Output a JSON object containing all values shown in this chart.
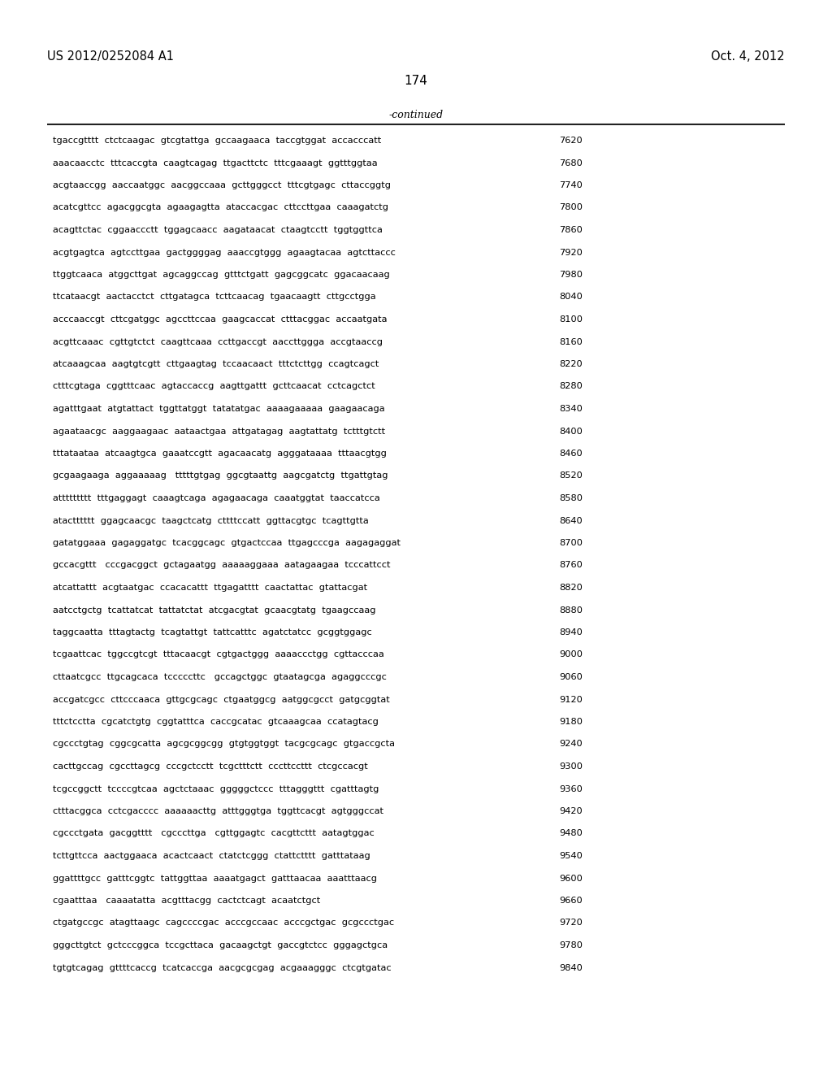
{
  "header_left": "US 2012/0252084 A1",
  "header_right": "Oct. 4, 2012",
  "page_number": "174",
  "continued_label": "-continued",
  "background_color": "#ffffff",
  "text_color": "#000000",
  "font_size_header": 10.5,
  "font_size_page": 11,
  "font_size_seq": 8.2,
  "sequence_lines": [
    {
      "seq": "tgaccgtttt  ctctcaagac  gtcgtattga  gccaagaaca  taccgtggat  accacccatt",
      "num": "7620"
    },
    {
      "seq": "aaacaacctc  tttcaccgta  caagtcagag  ttgacttctc  tttcgaaagt  ggtttggtaa",
      "num": "7680"
    },
    {
      "seq": "acgtaaccgg  aaccaatggc  aacggccaaa  gcttgggcct  tttcgtgagc  cttaccggtg",
      "num": "7740"
    },
    {
      "seq": "acatcgttcc  agacggcgta  agaagagtta  ataccacgac  cttccttgaa  caaagatctg",
      "num": "7800"
    },
    {
      "seq": "acagttctac  cggaaccctt  tggagcaacc  aagataacat  ctaagtcctt  tggtggttca",
      "num": "7860"
    },
    {
      "seq": "acgtgagtca  agtccttgaa  gactggggag  aaaccgtggg  agaagtacaa  agtcttaccc",
      "num": "7920"
    },
    {
      "seq": "ttggtcaaca  atggcttgat  agcaggccag  gtttctgatt  gagcggcatc  ggacaacaag",
      "num": "7980"
    },
    {
      "seq": "ttcataacgt  aactacctct  cttgatagca  tcttcaacag  tgaacaagtt  cttgcctgga",
      "num": "8040"
    },
    {
      "seq": "acccaaccgt  cttcgatggc  agccttccaa  gaagcaccat  ctttacggac  accaatgata",
      "num": "8100"
    },
    {
      "seq": "acgttcaaac  cgttgtctct  caagttcaaa  ccttgaccgt  aaccttggga  accgtaaccg",
      "num": "8160"
    },
    {
      "seq": "atcaaagcaa  aagtgtcgtt  cttgaagtag  tccaacaact  tttctcttgg  ccagtcagct",
      "num": "8220"
    },
    {
      "seq": "ctttcgtaga  cggtttcaac  agtaccaccg  aagttgattt  gcttcaacat  cctcagctct",
      "num": "8280"
    },
    {
      "seq": "agatttgaat  atgtattact  tggttatggt  tatatatgac  aaaagaaaaa  gaagaacaga",
      "num": "8340"
    },
    {
      "seq": "agaataacgc  aaggaagaac  aataactgaa  attgatagag  aagtattatg  tctttgtctt",
      "num": "8400"
    },
    {
      "seq": "tttataataa  atcaagtgca  gaaatccgtt  agacaacatg  agggataaaa  tttaacgtgg",
      "num": "8460"
    },
    {
      "seq": "gcgaagaaga  aggaaaaag   tttttgtgag  ggcgtaattg  aagcgatctg  ttgattgtag",
      "num": "8520"
    },
    {
      "seq": "attttttttt  tttgaggagt  caaagtcaga  agagaacaga  caaatggtat  taaccatcca",
      "num": "8580"
    },
    {
      "seq": "atactttttt  ggagcaacgc  taagctcatg  cttttccatt  ggttacgtgc  tcagttgtta",
      "num": "8640"
    },
    {
      "seq": "gatatggaaa  gagaggatgc  tcacggcagc  gtgactccaa  ttgagcccga  aagagaggat",
      "num": "8700"
    },
    {
      "seq": "gccacgttt   cccgacggct  gctagaatgg  aaaaaggaaa  aatagaagaa  tcccattcct",
      "num": "8760"
    },
    {
      "seq": "atcattattt  acgtaatgac  ccacacattt  ttgagatttt  caactattac  gtattacgat",
      "num": "8820"
    },
    {
      "seq": "aatcctgctg  tcattatcat  tattatctat  atcgacgtat  gcaacgtatg  tgaagccaag",
      "num": "8880"
    },
    {
      "seq": "taggcaatta  tttagtactg  tcagtattgt  tattcatttc  agatctatcc  gcggtggagc",
      "num": "8940"
    },
    {
      "seq": "tcgaattcac  tggccgtcgt  tttacaacgt  cgtgactggg  aaaaccctgg  cgttacccaa",
      "num": "9000"
    },
    {
      "seq": "cttaatcgcc  ttgcagcaca  tcccccttc   gccagctggc  gtaatagcga  agaggcccgc",
      "num": "9060"
    },
    {
      "seq": "accgatcgcc  cttcccaaca  gttgcgcagc  ctgaatggcg  aatggcgcct  gatgcggtat",
      "num": "9120"
    },
    {
      "seq": "tttctcctta  cgcatctgtg  cggtatttca  caccgcatac  gtcaaagcaa  ccatagtacg",
      "num": "9180"
    },
    {
      "seq": "cgccctgtag  cggcgcatta  agcgcggcgg  gtgtggtggt  tacgcgcagc  gtgaccgcta",
      "num": "9240"
    },
    {
      "seq": "cacttgccag  cgccttagcg  cccgctcctt  tcgctttctt  cccttccttt  ctcgccacgt",
      "num": "9300"
    },
    {
      "seq": "tcgccggctt  tccccgtcaa  agctctaaac  gggggctccc  tttagggttt  cgatttagtg",
      "num": "9360"
    },
    {
      "seq": "ctttacggca  cctcgacccc  aaaaaacttg  atttgggtga  tggttcacgt  agtgggccat",
      "num": "9420"
    },
    {
      "seq": "cgccctgata  gacggtttt   cgcccttga   cgttggagtc  cacgttcttt  aatagtggac",
      "num": "9480"
    },
    {
      "seq": "tcttgttcca  aactggaaca  acactcaact  ctatctcggg  ctattctttt  gatttataag",
      "num": "9540"
    },
    {
      "seq": "ggattttgcc  gatttcggtc  tattggttaa  aaaatgagct  gatttaacaa  aaatttaacg",
      "num": "9600"
    },
    {
      "seq": "cgaatttaa   caaaatatta  acgtttacgg  cactctcagt  acaatctgct",
      "num": "9660"
    },
    {
      "seq": "ctgatgccgc  atagttaagc  cagccccgac  acccgccaac  acccgctgac  gcgccctgac",
      "num": "9720"
    },
    {
      "seq": "gggcttgtct  gctcccggca  tccgcttaca  gacaagctgt  gaccgtctcc  gggagctgca",
      "num": "9780"
    },
    {
      "seq": "tgtgtcagag  gttttcaccg  tcatcaccga  aacgcgcgag  acgaaagggc  ctcgtgatac",
      "num": "9840"
    }
  ]
}
